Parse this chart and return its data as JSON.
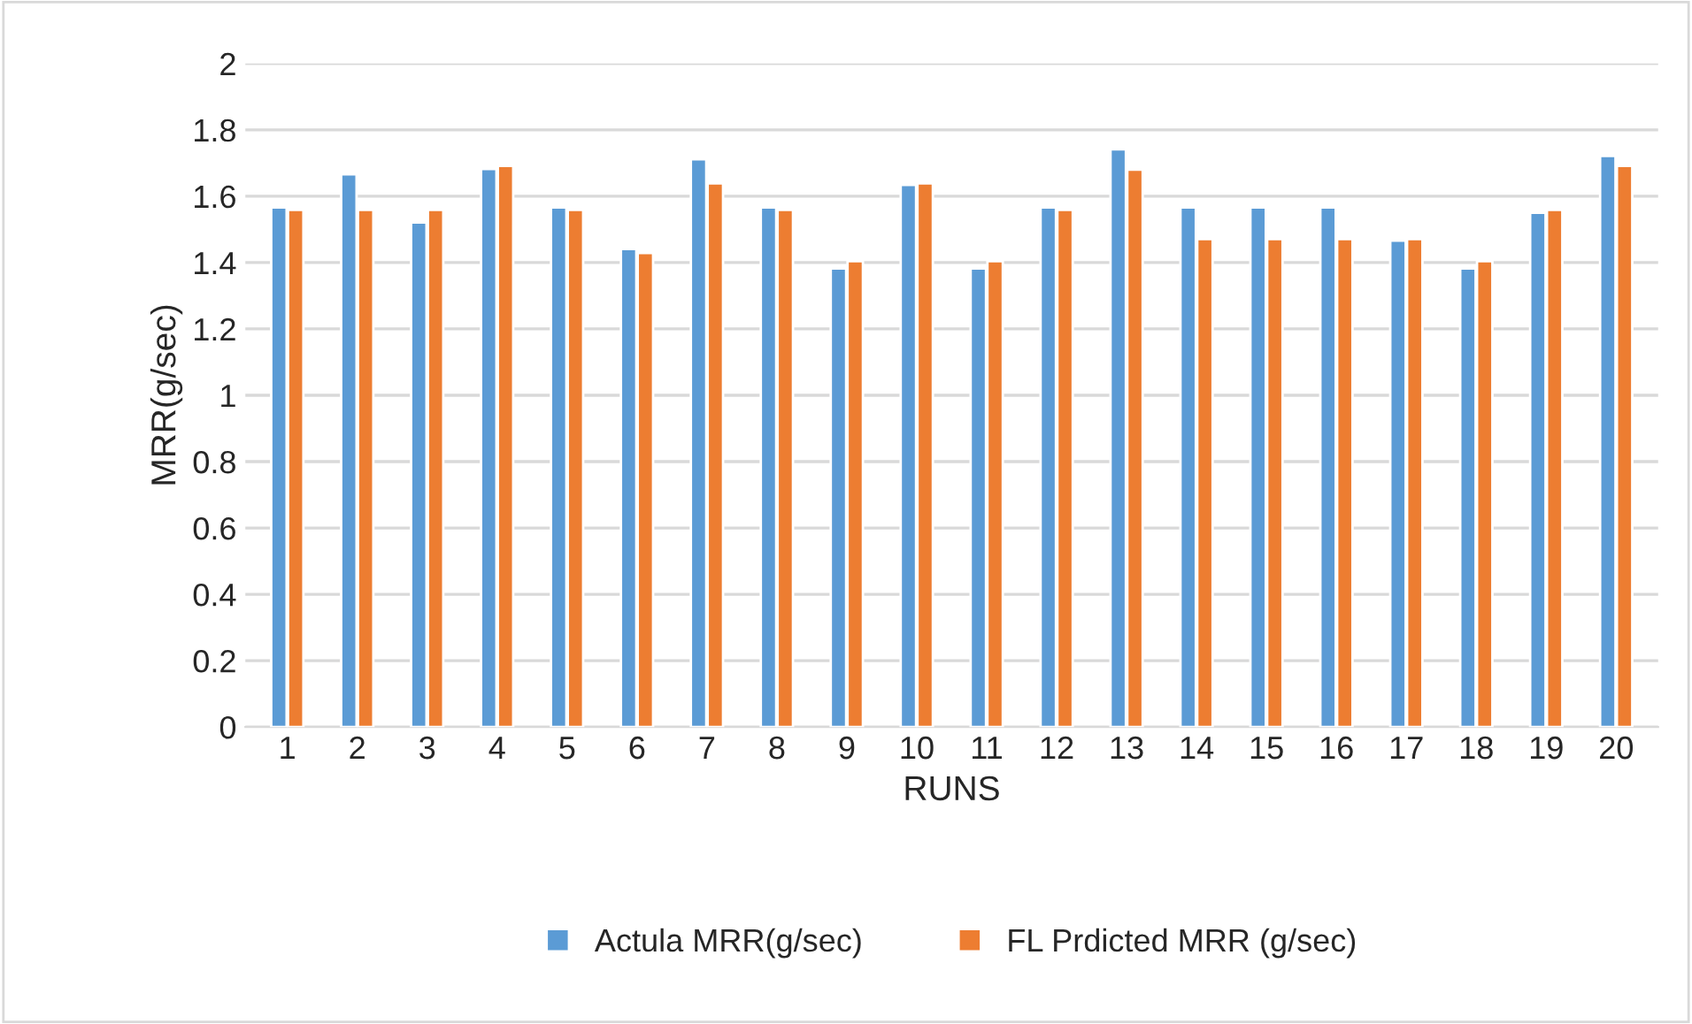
{
  "chart_data": {
    "type": "bar",
    "xlabel": "RUNS",
    "ylabel": "MRR(g/sec)",
    "categories": [
      "1",
      "2",
      "3",
      "4",
      "5",
      "6",
      "7",
      "8",
      "9",
      "10",
      "11",
      "12",
      "13",
      "14",
      "15",
      "16",
      "17",
      "18",
      "19",
      "20"
    ],
    "series": [
      {
        "name": "Actula MRR(g/sec)",
        "color": "#5b9bd5",
        "values": [
          1.566,
          1.666,
          1.521,
          1.682,
          1.566,
          1.441,
          1.711,
          1.566,
          1.382,
          1.634,
          1.382,
          1.566,
          1.741,
          1.566,
          1.566,
          1.566,
          1.466,
          1.382,
          1.55,
          1.721
        ]
      },
      {
        "name": "FL Prdicted MRR (g/sec)",
        "color": "#ed7d31",
        "values": [
          1.559,
          1.559,
          1.559,
          1.691,
          1.559,
          1.429,
          1.639,
          1.559,
          1.404,
          1.639,
          1.404,
          1.559,
          1.68,
          1.471,
          1.471,
          1.471,
          1.471,
          1.404,
          1.559,
          1.691
        ]
      }
    ],
    "ylim": [
      0,
      2
    ],
    "yticks": [
      0,
      0.2,
      0.4,
      0.6,
      0.8,
      1,
      1.2,
      1.4,
      1.6,
      1.8,
      2
    ],
    "grid": "y",
    "legend": "bottom"
  }
}
